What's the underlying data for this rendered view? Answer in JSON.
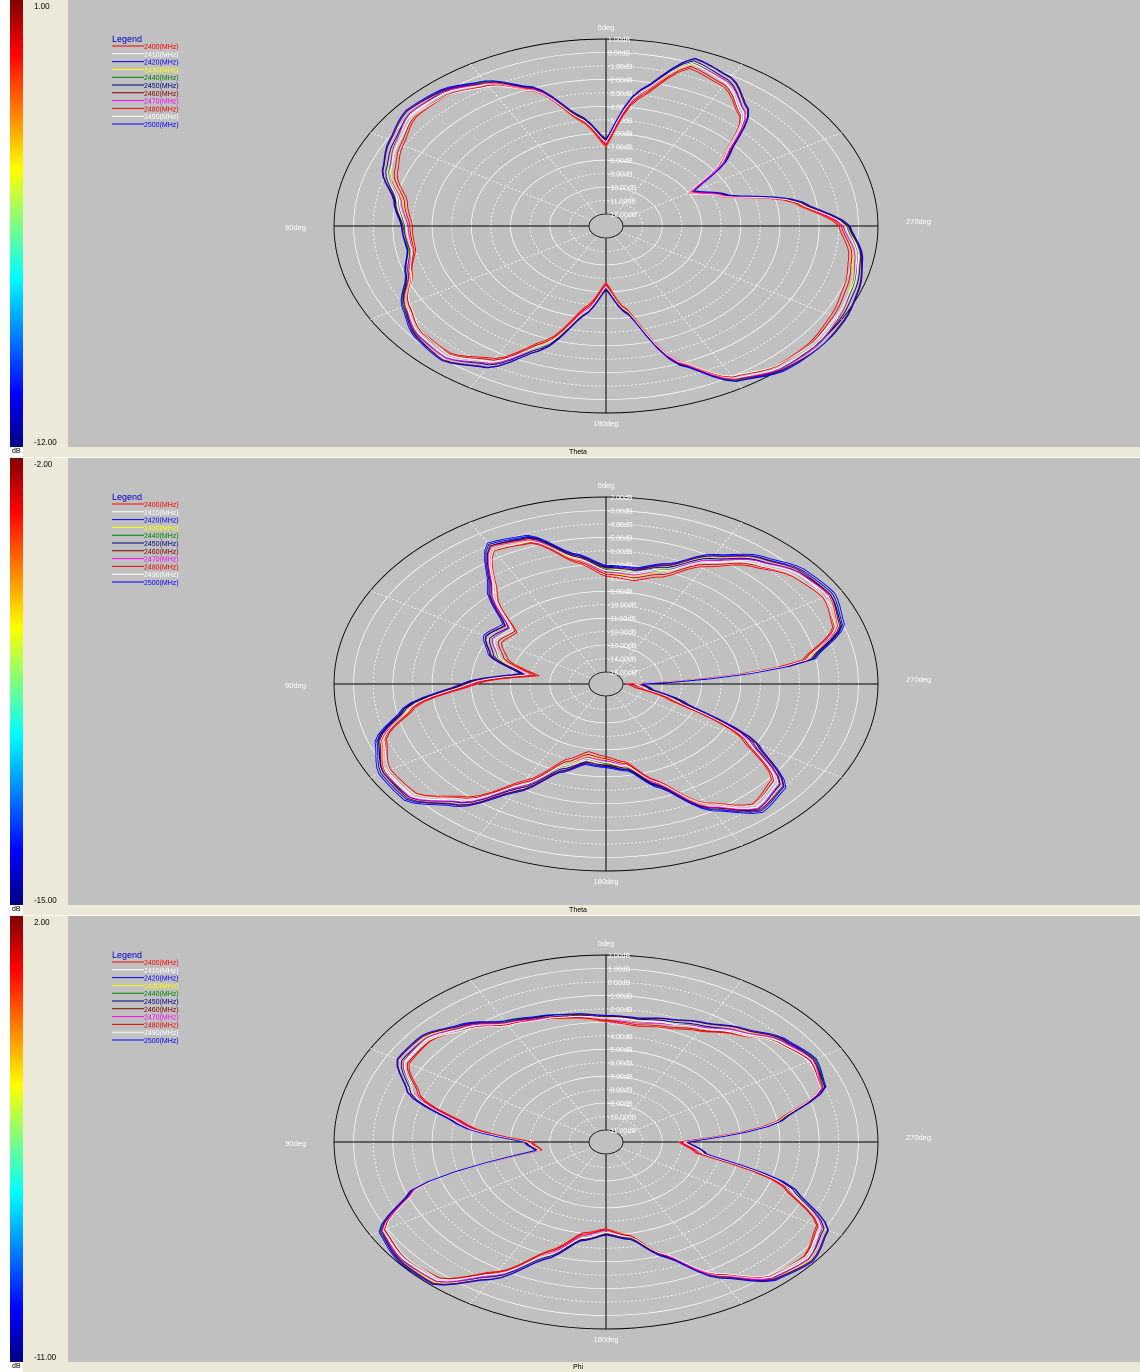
{
  "colors": {
    "grid": "#ffffff",
    "axis": "#000000",
    "background": "#c0c0c0"
  },
  "legend": {
    "title": "Legend",
    "entries": [
      {
        "label": "2400(MHz)",
        "color": "#ff0000"
      },
      {
        "label": "2410(MHz)",
        "color": "#ffffff"
      },
      {
        "label": "2420(MHz)",
        "color": "#0000ff"
      },
      {
        "label": "2430(MHz)",
        "color": "#ffff00"
      },
      {
        "label": "2440(MHz)",
        "color": "#008000"
      },
      {
        "label": "2450(MHz)",
        "color": "#000080"
      },
      {
        "label": "2460(MHz)",
        "color": "#800000"
      },
      {
        "label": "2470(MHz)",
        "color": "#ff00ff"
      },
      {
        "label": "2480(MHz)",
        "color": "#e00000"
      },
      {
        "label": "2490(MHz)",
        "color": "#ffffff"
      },
      {
        "label": "2500(MHz)",
        "color": "#0000ff"
      }
    ]
  },
  "angle_labels": {
    "top": "0deg",
    "left": "90deg",
    "right": "270deg",
    "bottom": "180deg"
  },
  "chart_data": [
    {
      "type": "polar",
      "axis_name": "Theta",
      "unit": "dB",
      "colorbar_max": "1.00",
      "colorbar_min": "-12.00",
      "ring_labels": [
        "1.00dB",
        "0.00dB",
        "-1.00dB",
        "-2.00dB",
        "-3.00dB",
        "-4.00dB",
        "-5.00dB",
        "-6.00dB",
        "-7.00dB",
        "-8.00dB",
        "-9.00dB",
        "-10.00dB",
        "-11.00dB",
        "-12.00dB"
      ],
      "rlim": [
        -12,
        1
      ],
      "base_curve": [
        [
          0,
          -6.8
        ],
        [
          10,
          -4.8
        ],
        [
          20,
          -2.2
        ],
        [
          30,
          -0.8
        ],
        [
          40,
          -0.1
        ],
        [
          50,
          0.0
        ],
        [
          60,
          -0.6
        ],
        [
          70,
          -1.2
        ],
        [
          80,
          -2.3
        ],
        [
          90,
          -2.8
        ],
        [
          100,
          -2.9
        ],
        [
          110,
          -2.3
        ],
        [
          120,
          -1.2
        ],
        [
          130,
          -0.5
        ],
        [
          140,
          -0.3
        ],
        [
          150,
          -1.2
        ],
        [
          160,
          -3.5
        ],
        [
          170,
          -6.5
        ],
        [
          180,
          -8.5
        ],
        [
          190,
          -6.5
        ],
        [
          200,
          -2.2
        ],
        [
          210,
          0.1
        ],
        [
          220,
          0.8
        ],
        [
          230,
          0.9
        ],
        [
          240,
          0.7
        ],
        [
          250,
          0.4
        ],
        [
          260,
          0.0
        ],
        [
          270,
          -0.8
        ],
        [
          280,
          -3.0
        ],
        [
          290,
          -6.5
        ],
        [
          300,
          -8.0
        ],
        [
          310,
          -5.0
        ],
        [
          320,
          -2.0
        ],
        [
          330,
          -0.6
        ],
        [
          340,
          -0.1
        ],
        [
          350,
          -3.0
        ],
        [
          360,
          -6.8
        ]
      ],
      "series": [
        {
          "name": "2400(MHz)",
          "offset": -0.2
        },
        {
          "name": "2410(MHz)",
          "offset": 0.15
        },
        {
          "name": "2420(MHz)",
          "offset": 0.35
        },
        {
          "name": "2430(MHz)",
          "offset": 0.05
        },
        {
          "name": "2440(MHz)",
          "offset": 0.2
        },
        {
          "name": "2450(MHz)",
          "offset": 0.25
        },
        {
          "name": "2460(MHz)",
          "offset": 0.3
        },
        {
          "name": "2470(MHz)",
          "offset": 0.1
        },
        {
          "name": "2480(MHz)",
          "offset": -0.1
        },
        {
          "name": "2490(MHz)",
          "offset": 0.0
        },
        {
          "name": "2500(MHz)",
          "offset": 0.4
        }
      ]
    },
    {
      "type": "polar",
      "axis_name": "Theta",
      "unit": "dB",
      "colorbar_max": "-2.00",
      "colorbar_min": "-15.00",
      "ring_labels": [
        "-2.00dB",
        "-3.00dB",
        "-4.00dB",
        "-5.00dB",
        "-6.00dB",
        "-7.00dB",
        "-8.00dB",
        "-9.00dB",
        "-10.00dB",
        "-11.00dB",
        "-12.00dB",
        "-13.00dB",
        "-14.00dB",
        "-15.00dB"
      ],
      "rlim": [
        -15,
        -2
      ],
      "base_curve": [
        [
          0,
          -7.6
        ],
        [
          10,
          -6.5
        ],
        [
          20,
          -4.6
        ],
        [
          30,
          -4.3
        ],
        [
          40,
          -7.0
        ],
        [
          50,
          -9.6
        ],
        [
          60,
          -9.3
        ],
        [
          70,
          -10.1
        ],
        [
          80,
          -12.0
        ],
        [
          90,
          -9.0
        ],
        [
          100,
          -5.8
        ],
        [
          110,
          -3.8
        ],
        [
          120,
          -3.0
        ],
        [
          130,
          -3.0
        ],
        [
          140,
          -4.6
        ],
        [
          150,
          -7.2
        ],
        [
          160,
          -9.5
        ],
        [
          170,
          -10.4
        ],
        [
          180,
          -10.2
        ],
        [
          190,
          -9.8
        ],
        [
          200,
          -8.1
        ],
        [
          210,
          -5.5
        ],
        [
          220,
          -4.0
        ],
        [
          230,
          -4.5
        ],
        [
          240,
          -7.5
        ],
        [
          250,
          -12.0
        ],
        [
          260,
          -14.0
        ],
        [
          270,
          -14.5
        ],
        [
          280,
          -5.5
        ],
        [
          290,
          -3.4
        ],
        [
          300,
          -2.9
        ],
        [
          310,
          -3.2
        ],
        [
          320,
          -4.1
        ],
        [
          330,
          -5.4
        ],
        [
          340,
          -7.0
        ],
        [
          350,
          -7.7
        ],
        [
          360,
          -7.6
        ]
      ],
      "series": [
        {
          "name": "2400(MHz)",
          "offset": -0.3
        },
        {
          "name": "2410(MHz)",
          "offset": 0.15
        },
        {
          "name": "2420(MHz)",
          "offset": 0.45
        },
        {
          "name": "2430(MHz)",
          "offset": 0.05
        },
        {
          "name": "2440(MHz)",
          "offset": 0.2
        },
        {
          "name": "2450(MHz)",
          "offset": 0.3
        },
        {
          "name": "2460(MHz)",
          "offset": 0.35
        },
        {
          "name": "2470(MHz)",
          "offset": 0.1
        },
        {
          "name": "2480(MHz)",
          "offset": -0.15
        },
        {
          "name": "2490(MHz)",
          "offset": 0.0
        },
        {
          "name": "2500(MHz)",
          "offset": 0.55
        }
      ]
    },
    {
      "type": "polar",
      "axis_name": "Phi",
      "unit": "dB",
      "colorbar_max": "2.00",
      "colorbar_min": "-11.00",
      "ring_labels": [
        "2.00dB",
        "1.00dB",
        "0.00dB",
        "-1.00dB",
        "-2.00dB",
        "-3.00dB",
        "-4.00dB",
        "-5.00dB",
        "-6.00dB",
        "-7.00dB",
        "-8.00dB",
        "-9.00dB",
        "-10.00dB",
        "-11.00dB"
      ],
      "rlim": [
        -11,
        2
      ],
      "base_curve": [
        [
          0,
          -2.8
        ],
        [
          10,
          -2.5
        ],
        [
          20,
          -2.2
        ],
        [
          30,
          -1.8
        ],
        [
          40,
          -0.8
        ],
        [
          50,
          0.0
        ],
        [
          60,
          0.0
        ],
        [
          70,
          -1.5
        ],
        [
          80,
          -4.5
        ],
        [
          90,
          -8.0
        ],
        [
          100,
          -8.5
        ],
        [
          110,
          -1.5
        ],
        [
          120,
          1.2
        ],
        [
          130,
          1.6
        ],
        [
          140,
          1.5
        ],
        [
          150,
          -0.5
        ],
        [
          160,
          -3.0
        ],
        [
          170,
          -4.8
        ],
        [
          180,
          -5.3
        ],
        [
          190,
          -4.8
        ],
        [
          200,
          -3.0
        ],
        [
          210,
          -0.5
        ],
        [
          220,
          1.2
        ],
        [
          230,
          1.5
        ],
        [
          240,
          0.8
        ],
        [
          250,
          -2.0
        ],
        [
          260,
          -7.0
        ],
        [
          270,
          -8.0
        ],
        [
          280,
          -3.0
        ],
        [
          290,
          -0.2
        ],
        [
          300,
          0.2
        ],
        [
          310,
          -0.3
        ],
        [
          320,
          -1.3
        ],
        [
          330,
          -2.1
        ],
        [
          340,
          -2.6
        ],
        [
          350,
          -2.9
        ],
        [
          360,
          -2.8
        ]
      ],
      "series": [
        {
          "name": "2400(MHz)",
          "offset": -0.15
        },
        {
          "name": "2410(MHz)",
          "offset": 0.1
        },
        {
          "name": "2420(MHz)",
          "offset": 0.3
        },
        {
          "name": "2430(MHz)",
          "offset": 0.05
        },
        {
          "name": "2440(MHz)",
          "offset": 0.15
        },
        {
          "name": "2450(MHz)",
          "offset": 0.2
        },
        {
          "name": "2460(MHz)",
          "offset": 0.25
        },
        {
          "name": "2470(MHz)",
          "offset": 0.05
        },
        {
          "name": "2480(MHz)",
          "offset": -0.1
        },
        {
          "name": "2490(MHz)",
          "offset": 0.0
        },
        {
          "name": "2500(MHz)",
          "offset": 0.35
        }
      ]
    }
  ]
}
